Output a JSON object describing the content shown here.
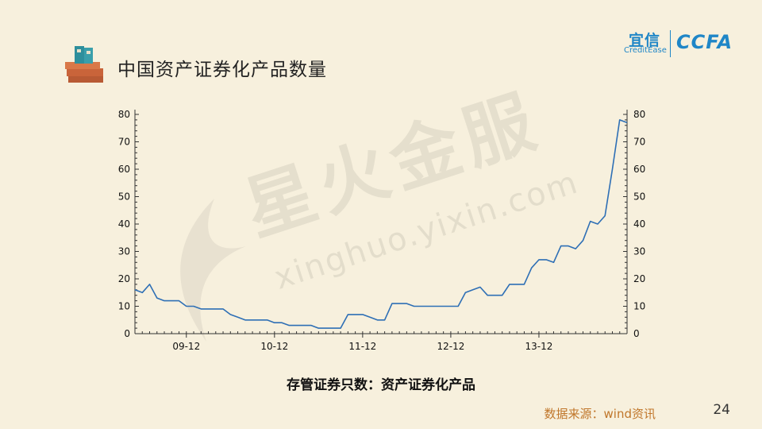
{
  "header": {
    "title": "中国资产证券化产品数量",
    "title_icon": "stacked-binders-icon",
    "logo": {
      "cn": "宜信",
      "en": "CreditEase",
      "mark": "CCFA",
      "color": "#1f86c7"
    }
  },
  "watermark": {
    "cn": "星火金服",
    "en": "xinghuo.yixin.com"
  },
  "chart_data": {
    "type": "line",
    "title": "",
    "xlabel": "",
    "ylabel": "",
    "ylim": [
      0,
      80
    ],
    "y_ticks": [
      0,
      10,
      20,
      30,
      40,
      50,
      60,
      70,
      80
    ],
    "y_tick_labels": [
      "0",
      "10",
      "20",
      "30",
      "40",
      "50",
      "60",
      "70",
      "80"
    ],
    "x_tick_labels": [
      "09-12",
      "10-12",
      "11-12",
      "12-12",
      "13-12"
    ],
    "x_tick_positions": [
      7,
      19,
      31,
      43,
      55
    ],
    "series": [
      {
        "color": "#2e6fb5",
        "values": [
          16,
          15,
          18,
          13,
          12,
          12,
          12,
          10,
          10,
          9,
          9,
          9,
          9,
          7,
          6,
          5,
          5,
          5,
          5,
          4,
          4,
          3,
          3,
          3,
          3,
          2,
          2,
          2,
          2,
          7,
          7,
          7,
          6,
          5,
          5,
          11,
          11,
          11,
          10,
          10,
          10,
          10,
          10,
          10,
          10,
          15,
          16,
          17,
          14,
          14,
          14,
          18,
          18,
          18,
          24,
          27,
          27,
          26,
          32,
          32,
          31,
          34,
          41,
          40,
          43,
          60,
          78,
          77
        ]
      }
    ],
    "grid": false,
    "legend": "none"
  },
  "caption": "存管证券只数：资产证券化产品",
  "source": "数据来源：wind资讯",
  "page_number": "24"
}
